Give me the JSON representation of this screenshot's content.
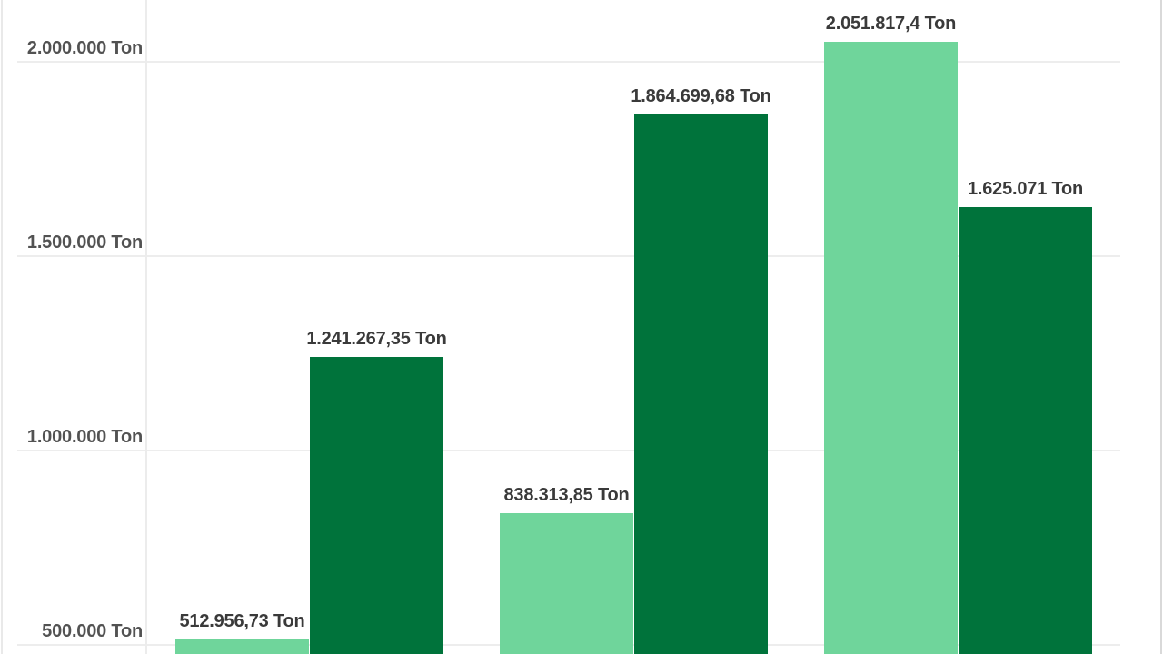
{
  "chart_data": {
    "type": "bar",
    "title": "",
    "unit": "Ton",
    "categories": [
      "",
      "",
      ""
    ],
    "series": [
      {
        "name": "light-green",
        "color": "#6FD59B",
        "values": [
          512956.73,
          838313.85,
          2051817.4
        ],
        "labels": [
          "512.956,73 Ton",
          "838.313,85 Ton",
          "2.051.817,4 Ton"
        ]
      },
      {
        "name": "dark-green",
        "color": "#00733B",
        "values": [
          1241267.35,
          1864699.68,
          1625071
        ],
        "labels": [
          "1.241.267,35 Ton",
          "1.864.699,68 Ton",
          "1.625.071 Ton"
        ]
      }
    ],
    "y_axis": {
      "tick_labels": [
        "2.000.000 Ton",
        "1.500.000 Ton",
        "1.000.000 Ton",
        "500.000 Ton"
      ],
      "tick_values": [
        2000000,
        1500000,
        1000000,
        500000
      ],
      "grid": true
    },
    "value_labels_visible": true,
    "x_axis_labels_visible": false,
    "legend_visible": false,
    "colors": {
      "background": "#ffffff",
      "grid_line": "#ededed",
      "axis_line": "#ececec",
      "tick_label": "#525252",
      "value_label": "#3a3a3a",
      "card_border_left": "#e9e9e9",
      "card_border_right": "#d9d9d9"
    }
  }
}
